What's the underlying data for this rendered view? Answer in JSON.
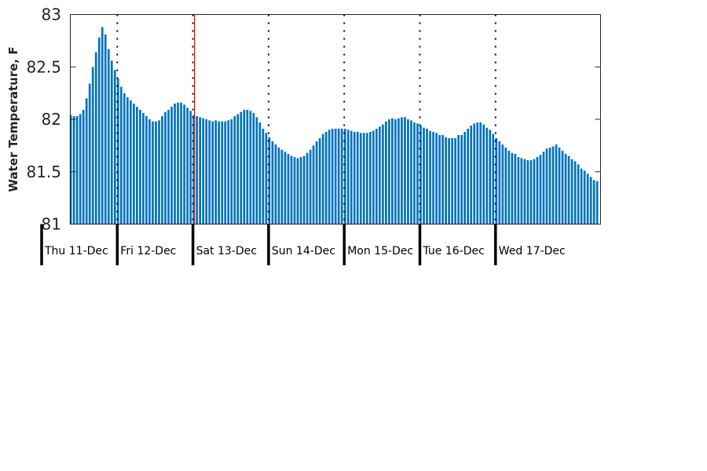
{
  "chart_data": {
    "type": "bar",
    "ylabel": "Water Temperature, F",
    "xlabel": "",
    "ylim": [
      81,
      83
    ],
    "y_ticks": [
      "81",
      "81.5",
      "82",
      "82.5",
      "83"
    ],
    "x_tick_labels": [
      "Thu 11-Dec",
      "Fri 12-Dec",
      "Sat 13-Dec",
      "Sun 14-Dec",
      "Mon 15-Dec",
      "Tue 16-Dec",
      "Wed 17-Dec"
    ],
    "bar_interval": "hourly",
    "grid": false,
    "day_separators": "dotted",
    "bar_color": "#0072bd",
    "marker_color": "#ff0000",
    "values": [
      82.04,
      82.03,
      82.03,
      82.05,
      82.09,
      82.2,
      82.34,
      82.5,
      82.64,
      82.78,
      82.88,
      82.81,
      82.67,
      82.56,
      82.47,
      82.39,
      82.31,
      82.25,
      82.21,
      82.18,
      82.15,
      82.12,
      82.09,
      82.06,
      82.03,
      82.0,
      81.98,
      81.98,
      81.99,
      82.03,
      82.07,
      82.09,
      82.12,
      82.15,
      82.16,
      82.16,
      82.14,
      82.11,
      82.08,
      82.04,
      82.03,
      82.02,
      82.01,
      82.0,
      81.99,
      81.98,
      81.99,
      81.98,
      81.98,
      81.98,
      81.99,
      82.0,
      82.03,
      82.05,
      82.07,
      82.09,
      82.09,
      82.08,
      82.06,
      82.02,
      81.97,
      81.91,
      81.87,
      81.83,
      81.79,
      81.76,
      81.73,
      81.71,
      81.69,
      81.67,
      81.65,
      81.64,
      81.63,
      81.64,
      81.65,
      81.68,
      81.71,
      81.75,
      81.79,
      81.82,
      81.86,
      81.88,
      81.9,
      81.91,
      81.91,
      81.91,
      81.91,
      81.91,
      81.9,
      81.89,
      81.88,
      81.88,
      81.87,
      81.87,
      81.87,
      81.88,
      81.89,
      81.91,
      81.93,
      81.95,
      81.98,
      82.0,
      82.01,
      82.0,
      82.01,
      82.02,
      82.02,
      82.0,
      81.99,
      81.97,
      81.96,
      81.94,
      81.92,
      81.91,
      81.89,
      81.88,
      81.87,
      81.85,
      81.85,
      81.83,
      81.82,
      81.82,
      81.82,
      81.85,
      81.85,
      81.88,
      81.91,
      81.94,
      81.96,
      81.97,
      81.97,
      81.95,
      81.92,
      81.9,
      81.86,
      81.82,
      81.79,
      81.76,
      81.73,
      81.7,
      81.68,
      81.67,
      81.64,
      81.63,
      81.62,
      81.61,
      81.61,
      81.62,
      81.64,
      81.66,
      81.69,
      81.72,
      81.73,
      81.74,
      81.76,
      81.73,
      81.7,
      81.67,
      81.65,
      81.62,
      81.6,
      81.57,
      81.53,
      81.51,
      81.48,
      81.45,
      81.42,
      81.41
    ]
  }
}
